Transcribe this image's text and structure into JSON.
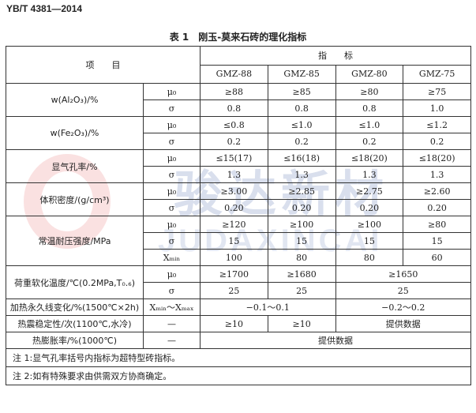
{
  "header": {
    "standard": "YB/T 4381—2014"
  },
  "caption": "表 1　刚玉-莫来石砖的理化指标",
  "table": {
    "item": "项　　目",
    "indicator": "指　　标",
    "grades": [
      "GMZ-88",
      "GMZ-85",
      "GMZ-80",
      "GMZ-75"
    ],
    "groups": [
      {
        "label": "w(Al₂O₃)/%",
        "rows": [
          {
            "symbol": "μ₀",
            "values": [
              "≥88",
              "≥85",
              "≥80",
              "≥75"
            ]
          },
          {
            "symbol": "σ",
            "values": [
              "0.8",
              "0.8",
              "0.8",
              "1.0"
            ]
          }
        ]
      },
      {
        "label": "w(Fe₂O₃)/%",
        "rows": [
          {
            "symbol": "μ₀",
            "values": [
              "≤0.8",
              "≤1.0",
              "≤1.0",
              "≤1.2"
            ]
          },
          {
            "symbol": "σ",
            "values": [
              "0.2",
              "0.2",
              "0.2",
              "0.2"
            ]
          }
        ]
      },
      {
        "label": "显气孔率/%",
        "rows": [
          {
            "symbol": "μ₀",
            "values": [
              "≤15(17)",
              "≤16(18)",
              "≤18(20)",
              "≤18(20)"
            ]
          },
          {
            "symbol": "σ",
            "values": [
              "1.3",
              "1.3",
              "1.3",
              "1.3"
            ]
          }
        ]
      },
      {
        "label": "体积密度/(g/cm³)",
        "rows": [
          {
            "symbol": "μ₀",
            "values": [
              "≥3.00",
              "≥2.85",
              "≥2.75",
              "≥2.60"
            ]
          },
          {
            "symbol": "σ",
            "values": [
              "0.20",
              "0.20",
              "0.20",
              "0.20"
            ]
          }
        ]
      },
      {
        "label": "常温耐压强度/MPa",
        "rows": [
          {
            "symbol": "μ₀",
            "values": [
              "≥120",
              "≥100",
              "≥100",
              "≥80"
            ]
          },
          {
            "symbol": "σ",
            "values": [
              "15",
              "15",
              "15",
              "15"
            ]
          },
          {
            "symbol": "Xₘᵢₙ",
            "values": [
              "100",
              "80",
              "80",
              "60"
            ]
          }
        ]
      },
      {
        "label": "荷重软化温度/℃(0.2MPa,T₀.₆)",
        "rows": [
          {
            "symbol": "μ₀",
            "values": [
              "≥1700",
              "≥1680",
              "≥1650"
            ]
          },
          {
            "symbol": "σ",
            "values": [
              "25",
              "25",
              "25"
            ]
          }
        ]
      },
      {
        "label": "加热永久线变化/%(1500℃×2h)",
        "rows": [
          {
            "symbol": "Xₘᵢₙ～Xₘₐₓ",
            "values": [
              "−0.1～0.1",
              "−0.2～0.2"
            ]
          }
        ]
      },
      {
        "label": "热震稳定性/次(1100℃,水冷)",
        "rows": [
          {
            "symbol": "—",
            "values": [
              "≥10",
              "≥10",
              "提供数据"
            ]
          }
        ]
      },
      {
        "label": "热膨胀率/%(1000℃)",
        "rows": [
          {
            "symbol": "—",
            "values": [
              "提供数据"
            ]
          }
        ]
      }
    ],
    "notes": [
      "注 1:显气孔率括号内指标为超特型砖指标。",
      "注 2:如有特殊要求由供需双方协商确定。"
    ]
  },
  "watermark": {
    "cn": "骏达新材",
    "en": "JUDAXINCAI"
  }
}
